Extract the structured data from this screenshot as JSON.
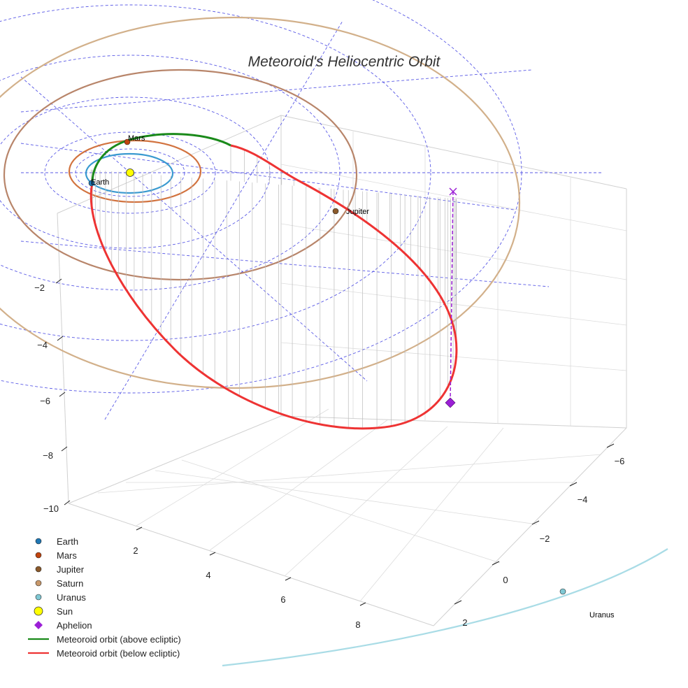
{
  "chart_data": {
    "type": "line",
    "projection": "3d",
    "title": "Meteoroid's Heliocentric Orbit",
    "axes": {
      "z": {
        "ticks": [
          "−2",
          "−4",
          "−6",
          "−8",
          "−10"
        ]
      },
      "x": {
        "ticks": [
          "2",
          "4",
          "6",
          "8"
        ]
      },
      "y": {
        "ticks": [
          "−6",
          "−4",
          "−2",
          "0",
          "2"
        ]
      }
    },
    "bodies": [
      {
        "name": "Earth",
        "color": "#1f77b4",
        "label": "Earth"
      },
      {
        "name": "Mars",
        "color": "#c1440e",
        "label": "Mars"
      },
      {
        "name": "Jupiter",
        "color": "#8b5a2b",
        "label": "Jupiter"
      },
      {
        "name": "Saturn",
        "color": "#c8986a",
        "label": ""
      },
      {
        "name": "Uranus",
        "color": "#7fc8d4",
        "label": "Uranus"
      },
      {
        "name": "Sun",
        "color": "#ffff00",
        "label": ""
      }
    ],
    "aphelion": {
      "label": "Aphelion",
      "color": "#9b1fd6"
    },
    "series": [
      {
        "name": "Meteoroid orbit (above ecliptic)",
        "color": "#1a8a1a"
      },
      {
        "name": "Meteoroid orbit (below ecliptic)",
        "color": "#ee3333"
      }
    ],
    "orbit_colors": {
      "earth": "#3a9ad0",
      "mars": "#d2733f",
      "jupiter": "#b8856a",
      "saturn": "#d2b08a",
      "uranus": "#a9dce6",
      "grid": "#5a5ae6"
    }
  },
  "legend": {
    "items": [
      {
        "label": "Earth",
        "marker": "circle",
        "color": "#1f77b4"
      },
      {
        "label": "Mars",
        "marker": "circle",
        "color": "#c1440e"
      },
      {
        "label": "Jupiter",
        "marker": "circle",
        "color": "#8b5a2b"
      },
      {
        "label": "Saturn",
        "marker": "circle",
        "color": "#c8986a"
      },
      {
        "label": "Uranus",
        "marker": "circle",
        "color": "#7fc8d4"
      },
      {
        "label": "Sun",
        "marker": "sun",
        "color": "#ffff00"
      },
      {
        "label": "Aphelion",
        "marker": "diamond",
        "color": "#9b1fd6"
      },
      {
        "label": "Meteoroid orbit (above ecliptic)",
        "marker": "line",
        "color": "#1a8a1a"
      },
      {
        "label": "Meteoroid orbit (below ecliptic)",
        "marker": "line",
        "color": "#ee3333"
      }
    ]
  }
}
